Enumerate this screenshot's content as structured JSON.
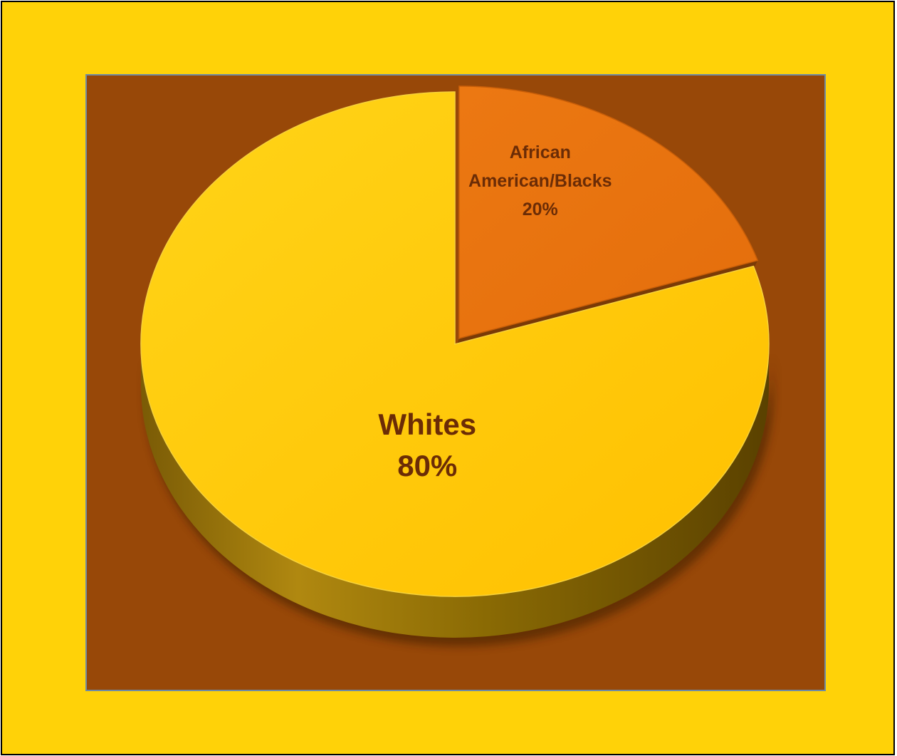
{
  "chart_data": {
    "type": "pie",
    "title": "",
    "slices": [
      {
        "label": "African American/Blacks",
        "label_lines": [
          "African",
          "American/Blacks"
        ],
        "value": 20,
        "percent_label": "20%",
        "color": "#e8720e",
        "exploded": true
      },
      {
        "label": "Whites",
        "label_lines": [
          "Whites"
        ],
        "value": 80,
        "percent_label": "80%",
        "color": "#ffc70c",
        "exploded": false
      }
    ],
    "style": "3d",
    "legend": "none",
    "label_color": "#6b2c06"
  },
  "colors": {
    "page_background": "#ffd208",
    "plot_background": "#984808",
    "plot_border": "#6f8ba4"
  }
}
